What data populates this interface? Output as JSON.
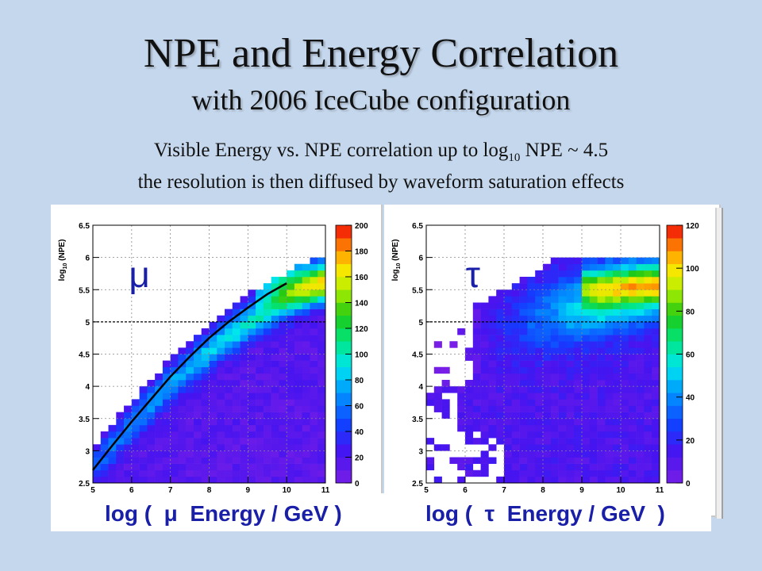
{
  "slide": {
    "title": "NPE and Energy Correlation",
    "subtitle": "with 2006 IceCube configuration",
    "desc_line1_pre": "Visible Energy vs. NPE correlation up to log",
    "desc_line1_sub": "10",
    "desc_line1_post": " NPE ~ 4.5",
    "desc_line2": "the resolution is then diffused by waveform saturation effects"
  },
  "chart_data": [
    {
      "type": "heatmap",
      "particle_label": "μ",
      "xlabel": "log (  μ  Energy / GeV )",
      "ylabel_pre": "log",
      "ylabel_sub": "10",
      "ylabel_post": " (NPE)",
      "xlim": [
        5,
        11
      ],
      "ylim": [
        2.5,
        6.5
      ],
      "x_ticks": [
        "5",
        "6",
        "7",
        "8",
        "9",
        "10",
        "11"
      ],
      "y_ticks": [
        "2.5",
        "3",
        "3.5",
        "4",
        "4.5",
        "5",
        "5.5",
        "6",
        "6.5"
      ],
      "colorbar_ticks": [
        "0",
        "20",
        "40",
        "60",
        "80",
        "100",
        "120",
        "140",
        "160",
        "180",
        "200"
      ],
      "colorbar_max": 200,
      "dashed_line_y": 5,
      "grid": true,
      "fit_curve": {
        "x": [
          5.0,
          5.5,
          6.0,
          6.5,
          7.0,
          7.5,
          8.0,
          8.5,
          9.0,
          9.5,
          10.0
        ],
        "y": [
          2.7,
          3.08,
          3.45,
          3.8,
          4.15,
          4.46,
          4.75,
          5.0,
          5.22,
          5.43,
          5.6
        ]
      }
    },
    {
      "type": "heatmap",
      "particle_label": "τ",
      "xlabel": "log (  τ  Energy / GeV  )",
      "ylabel_pre": "log",
      "ylabel_sub": "10",
      "ylabel_post": " (NPE)",
      "xlim": [
        5,
        11
      ],
      "ylim": [
        2.5,
        6.5
      ],
      "x_ticks": [
        "5",
        "6",
        "7",
        "8",
        "9",
        "10",
        "11"
      ],
      "y_ticks": [
        "2.5",
        "3",
        "3.5",
        "4",
        "4.5",
        "5",
        "5.5",
        "6",
        "6.5"
      ],
      "colorbar_ticks": [
        "0",
        "20",
        "40",
        "60",
        "80",
        "100",
        "120"
      ],
      "colorbar_max": 120,
      "dashed_line_y": 5,
      "grid": true
    }
  ],
  "colors": {
    "background": "#c5d7ec",
    "axis_label_blue": "#1a1fa8",
    "particle_label_blue": "#1a1fa8"
  }
}
